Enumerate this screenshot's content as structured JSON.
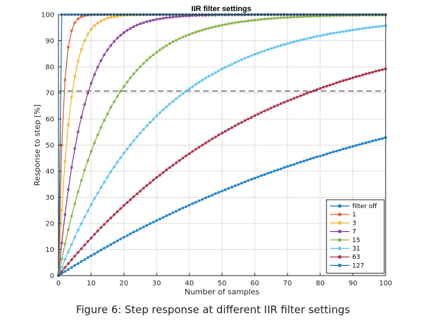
{
  "chart_data": {
    "type": "line",
    "title": "IIR filter settings",
    "xlabel": "Number of samples",
    "ylabel": "Response to step [%]",
    "xlim": [
      0,
      100
    ],
    "ylim": [
      0,
      100
    ],
    "x_ticks": [
      "0",
      "10",
      "20",
      "30",
      "40",
      "50",
      "60",
      "70",
      "80",
      "90",
      "100"
    ],
    "y_ticks": [
      "0",
      "10",
      "20",
      "30",
      "40",
      "50",
      "60",
      "70",
      "80",
      "90",
      "100"
    ],
    "grid": true,
    "legend_position": "bottom-right",
    "reference_line": {
      "y": 70.7,
      "style": "dashed"
    },
    "x": [
      0,
      1,
      2,
      3,
      4,
      5,
      6,
      7,
      8,
      9,
      10,
      11,
      12,
      13,
      14,
      15,
      16,
      17,
      18,
      19,
      20,
      21,
      22,
      23,
      24,
      25,
      26,
      27,
      28,
      29,
      30,
      31,
      32,
      33,
      34,
      35,
      36,
      37,
      38,
      39,
      40,
      41,
      42,
      43,
      44,
      45,
      46,
      47,
      48,
      49,
      50,
      51,
      52,
      53,
      54,
      55,
      56,
      57,
      58,
      59,
      60,
      61,
      62,
      63,
      64,
      65,
      66,
      67,
      68,
      69,
      70,
      71,
      72,
      73,
      74,
      75,
      76,
      77,
      78,
      79,
      80,
      81,
      82,
      83,
      84,
      85,
      86,
      87,
      88,
      89,
      90,
      91,
      92,
      93,
      94,
      95,
      96,
      97,
      98,
      99,
      100
    ],
    "series": [
      {
        "name": "filter off",
        "color": "#0072bd",
        "values": [
          0,
          100,
          100,
          100,
          100,
          100,
          100,
          100,
          100,
          100,
          100,
          100,
          100,
          100,
          100,
          100,
          100,
          100,
          100,
          100,
          100,
          100,
          100,
          100,
          100,
          100,
          100,
          100,
          100,
          100,
          100,
          100,
          100,
          100,
          100,
          100,
          100,
          100,
          100,
          100,
          100,
          100,
          100,
          100,
          100,
          100,
          100,
          100,
          100,
          100,
          100,
          100,
          100,
          100,
          100,
          100,
          100,
          100,
          100,
          100,
          100,
          100,
          100,
          100,
          100,
          100,
          100,
          100,
          100,
          100,
          100,
          100,
          100,
          100,
          100,
          100,
          100,
          100,
          100,
          100,
          100,
          100,
          100,
          100,
          100,
          100,
          100,
          100,
          100,
          100,
          100,
          100,
          100,
          100,
          100,
          100,
          100,
          100,
          100,
          100,
          100
        ]
      },
      {
        "name": "1",
        "color": "#d95319",
        "values": [
          0,
          50,
          75,
          87.5,
          93.8,
          96.9,
          98.4,
          99.2,
          99.6,
          99.8,
          99.9,
          100,
          100,
          100,
          100,
          100,
          100,
          100,
          100,
          100,
          100,
          100,
          100,
          100,
          100,
          100,
          100,
          100,
          100,
          100,
          100,
          100,
          100,
          100,
          100,
          100,
          100,
          100,
          100,
          100,
          100,
          100,
          100,
          100,
          100,
          100,
          100,
          100,
          100,
          100,
          100,
          100,
          100,
          100,
          100,
          100,
          100,
          100,
          100,
          100,
          100,
          100,
          100,
          100,
          100,
          100,
          100,
          100,
          100,
          100,
          100,
          100,
          100,
          100,
          100,
          100,
          100,
          100,
          100,
          100,
          100,
          100,
          100,
          100,
          100,
          100,
          100,
          100,
          100,
          100,
          100,
          100,
          100,
          100,
          100,
          100,
          100,
          100,
          100,
          100,
          100
        ]
      },
      {
        "name": "3",
        "color": "#edb120",
        "values": [
          0,
          25,
          43.8,
          57.8,
          68.4,
          76.3,
          82.2,
          86.7,
          90,
          92.5,
          94.4,
          95.8,
          96.8,
          97.6,
          98.2,
          98.7,
          99,
          99.2,
          99.4,
          99.6,
          99.7,
          99.8,
          99.8,
          99.9,
          99.9,
          99.9,
          99.9,
          100,
          100,
          100,
          100,
          100,
          100,
          100,
          100,
          100,
          100,
          100,
          100,
          100,
          100,
          100,
          100,
          100,
          100,
          100,
          100,
          100,
          100,
          100,
          100,
          100,
          100,
          100,
          100,
          100,
          100,
          100,
          100,
          100,
          100,
          100,
          100,
          100,
          100,
          100,
          100,
          100,
          100,
          100,
          100,
          100,
          100,
          100,
          100,
          100,
          100,
          100,
          100,
          100,
          100,
          100,
          100,
          100,
          100,
          100,
          100,
          100,
          100,
          100,
          100,
          100,
          100,
          100,
          100,
          100,
          100,
          100,
          100,
          100,
          100
        ]
      },
      {
        "name": "7",
        "color": "#7e2f8e",
        "values": [
          0,
          12.5,
          23.4,
          33,
          41.4,
          48.7,
          55.1,
          60.7,
          65.6,
          69.9,
          73.7,
          77,
          79.9,
          82.4,
          84.6,
          86.5,
          88.2,
          89.7,
          91,
          92.1,
          93.1,
          94,
          94.7,
          95.4,
          96,
          96.5,
          96.9,
          97.3,
          97.6,
          97.9,
          98.2,
          98.4,
          98.6,
          98.8,
          98.9,
          99.1,
          99.2,
          99.3,
          99.4,
          99.5,
          99.5,
          99.6,
          99.6,
          99.7,
          99.7,
          99.7,
          99.8,
          99.8,
          99.8,
          99.9,
          99.9,
          99.9,
          99.9,
          99.9,
          99.9,
          99.9,
          99.9,
          99.9,
          100,
          100,
          100,
          100,
          100,
          100,
          100,
          100,
          100,
          100,
          100,
          100,
          100,
          100,
          100,
          100,
          100,
          100,
          100,
          100,
          100,
          100,
          100,
          100,
          100,
          100,
          100,
          100,
          100,
          100,
          100,
          100,
          100,
          100,
          100,
          100,
          100,
          100,
          100,
          100,
          100,
          100,
          100
        ]
      },
      {
        "name": "15",
        "color": "#77ac30",
        "values": [
          0,
          6.3,
          12.1,
          17.6,
          22.8,
          27.6,
          32.1,
          36.4,
          40.4,
          44.1,
          47.6,
          50.9,
          53.9,
          56.8,
          59.5,
          62,
          64.4,
          66.6,
          68.7,
          70.7,
          72.5,
          74.2,
          75.8,
          77.3,
          78.7,
          80,
          81.3,
          82.5,
          83.6,
          84.6,
          85.6,
          86.5,
          87.3,
          88.1,
          88.9,
          89.6,
          90.2,
          90.8,
          91.4,
          91.9,
          92.4,
          92.9,
          93.3,
          93.7,
          94.1,
          94.5,
          94.8,
          95.1,
          95.4,
          95.7,
          96,
          96.2,
          96.5,
          96.7,
          96.9,
          97.1,
          97.3,
          97.4,
          97.6,
          97.8,
          97.9,
          98,
          98.2,
          98.3,
          98.4,
          98.5,
          98.6,
          98.7,
          98.8,
          98.9,
          98.9,
          99,
          99.1,
          99.1,
          99.2,
          99.2,
          99.3,
          99.3,
          99.4,
          99.4,
          99.4,
          99.5,
          99.5,
          99.5,
          99.6,
          99.6,
          99.6,
          99.6,
          99.7,
          99.7,
          99.7,
          99.7,
          99.7,
          99.8,
          99.8,
          99.8,
          99.8,
          99.8,
          99.8,
          99.8,
          99.8
        ]
      },
      {
        "name": "31",
        "color": "#4dbeee",
        "values": [
          0,
          3.1,
          6.2,
          9.1,
          11.9,
          14.7,
          17.4,
          19.9,
          22.4,
          24.9,
          27.2,
          29.5,
          31.6,
          33.8,
          35.8,
          37.8,
          39.8,
          41.6,
          43.5,
          45.2,
          46.9,
          48.5,
          50.1,
          51.7,
          53.2,
          54.6,
          56,
          57.4,
          58.7,
          59.9,
          61.2,
          62.4,
          63.5,
          64.6,
          65.7,
          66.8,
          67.8,
          68.8,
          69.7,
          70.7,
          71.6,
          72.4,
          73.3,
          74.1,
          74.9,
          75.7,
          76.4,
          77.1,
          77.8,
          78.5,
          79.2,
          79.8,
          80.4,
          81,
          81.6,
          82.2,
          82.7,
          83.3,
          83.8,
          84.3,
          84.8,
          85.2,
          85.7,
          86.1,
          86.6,
          87,
          87.4,
          87.8,
          88.2,
          88.5,
          88.9,
          89.2,
          89.6,
          89.9,
          90.2,
          90.5,
          90.8,
          91.1,
          91.4,
          91.7,
          91.9,
          92.2,
          92.4,
          92.7,
          92.9,
          93.1,
          93.3,
          93.5,
          93.7,
          93.9,
          94.1,
          94.3,
          94.5,
          94.7,
          94.9,
          95,
          95.2,
          95.3,
          95.5,
          95.6,
          95.8
        ]
      },
      {
        "name": "63",
        "color": "#a2142f",
        "values": [
          0,
          1.6,
          3.1,
          4.6,
          6.1,
          7.5,
          8.9,
          10.3,
          11.7,
          13.1,
          14.4,
          15.8,
          17.1,
          18.4,
          19.6,
          20.9,
          22.1,
          23.3,
          24.5,
          25.7,
          26.9,
          28,
          29.1,
          30.2,
          31.3,
          32.4,
          33.5,
          34.5,
          35.5,
          36.6,
          37.6,
          38.5,
          39.5,
          40.5,
          41.4,
          42.3,
          43.2,
          44.1,
          45,
          45.9,
          46.7,
          47.6,
          48.4,
          49.2,
          50,
          50.8,
          51.6,
          52.4,
          53.1,
          53.9,
          54.6,
          55.3,
          56,
          56.7,
          57.4,
          58.1,
          58.7,
          59.4,
          60,
          60.6,
          61.3,
          61.9,
          62.5,
          63.1,
          63.6,
          64.2,
          64.8,
          65.3,
          65.9,
          66.4,
          66.9,
          67.4,
          67.9,
          68.4,
          68.9,
          69.4,
          69.9,
          70.4,
          70.8,
          71.3,
          71.7,
          72.2,
          72.6,
          73,
          73.4,
          73.9,
          74.3,
          74.7,
          75,
          75.4,
          75.8,
          76.2,
          76.5,
          76.9,
          77.3,
          77.6,
          77.9,
          78.3,
          78.6,
          78.9,
          79.2
        ]
      },
      {
        "name": "127",
        "color": "#0072bd",
        "values": [
          0,
          0.8,
          1.6,
          2.3,
          3.1,
          3.9,
          4.6,
          5.4,
          6.1,
          6.9,
          7.6,
          8.3,
          9.1,
          9.8,
          10.5,
          11.2,
          11.9,
          12.6,
          13.3,
          14,
          14.7,
          15.3,
          16,
          16.7,
          17.3,
          18,
          18.6,
          19.2,
          19.9,
          20.5,
          21.1,
          21.7,
          22.3,
          22.9,
          23.5,
          24.1,
          24.7,
          25.3,
          25.9,
          26.4,
          27,
          27.6,
          28.1,
          28.7,
          29.2,
          29.8,
          30.3,
          30.8,
          31.4,
          31.9,
          32.4,
          32.9,
          33.4,
          33.9,
          34.4,
          34.9,
          35.4,
          35.9,
          36.4,
          36.9,
          37.3,
          37.8,
          38.3,
          38.7,
          39.2,
          39.6,
          40.1,
          40.5,
          40.9,
          41.4,
          41.8,
          42.2,
          42.6,
          43.1,
          43.5,
          43.9,
          44.3,
          44.7,
          45.1,
          45.5,
          45.8,
          46.2,
          46.6,
          47,
          47.4,
          47.7,
          48.1,
          48.5,
          48.8,
          49.2,
          49.5,
          49.9,
          50.2,
          50.6,
          50.9,
          51.2,
          51.6,
          51.9,
          52.2,
          52.5,
          52.9
        ]
      }
    ]
  },
  "caption": "Figure 6: Step response at different IIR filter settings"
}
